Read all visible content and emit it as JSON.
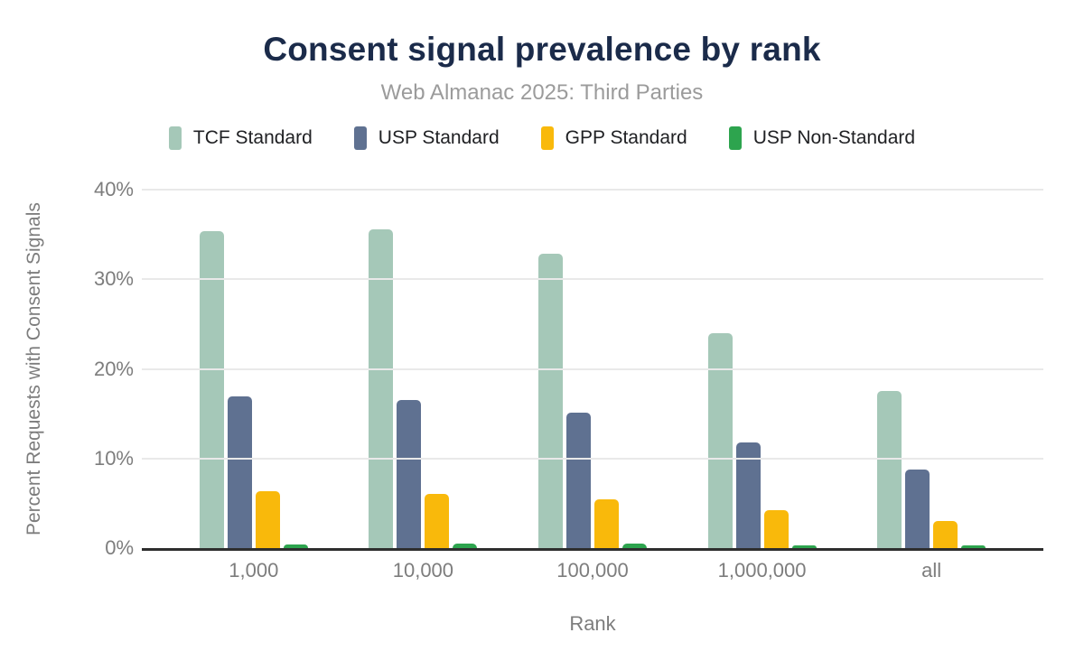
{
  "chart_data": {
    "type": "bar",
    "title": "Consent signal prevalence by rank",
    "subtitle": "Web Almanac 2025: Third Parties",
    "categories": [
      "1,000",
      "10,000",
      "100,000",
      "1,000,000",
      "all"
    ],
    "series": [
      {
        "name": "TCF Standard",
        "color": "#a5c8b8",
        "values": [
          35.4,
          35.6,
          32.8,
          24.0,
          17.5
        ]
      },
      {
        "name": "USP Standard",
        "color": "#5f7191",
        "values": [
          16.9,
          16.5,
          15.1,
          11.8,
          8.8
        ]
      },
      {
        "name": "GPP Standard",
        "color": "#f9b90b",
        "values": [
          6.3,
          6.0,
          5.4,
          4.2,
          3.0
        ]
      },
      {
        "name": "USP Non-Standard",
        "color": "#2da44e",
        "values": [
          0.4,
          0.5,
          0.5,
          0.3,
          0.3
        ]
      }
    ],
    "xlabel": "Rank",
    "ylabel": "Percent Requests with Consent Signals",
    "ylim": [
      0,
      40
    ],
    "yticks": [
      {
        "value": 0,
        "label": "0%"
      },
      {
        "value": 10,
        "label": "10%"
      },
      {
        "value": 20,
        "label": "20%"
      },
      {
        "value": 30,
        "label": "30%"
      },
      {
        "value": 40,
        "label": "40%"
      }
    ],
    "grid": true,
    "legend_position": "top"
  },
  "colors": {
    "title_text": "#1b2b4a",
    "subtitle_text": "#9b9b9b",
    "axis_text": "#7d7d7d",
    "legend_text": "#202124",
    "gridline": "#e9e9e9",
    "axis_line": "#2e2e2e",
    "background": "#ffffff"
  }
}
